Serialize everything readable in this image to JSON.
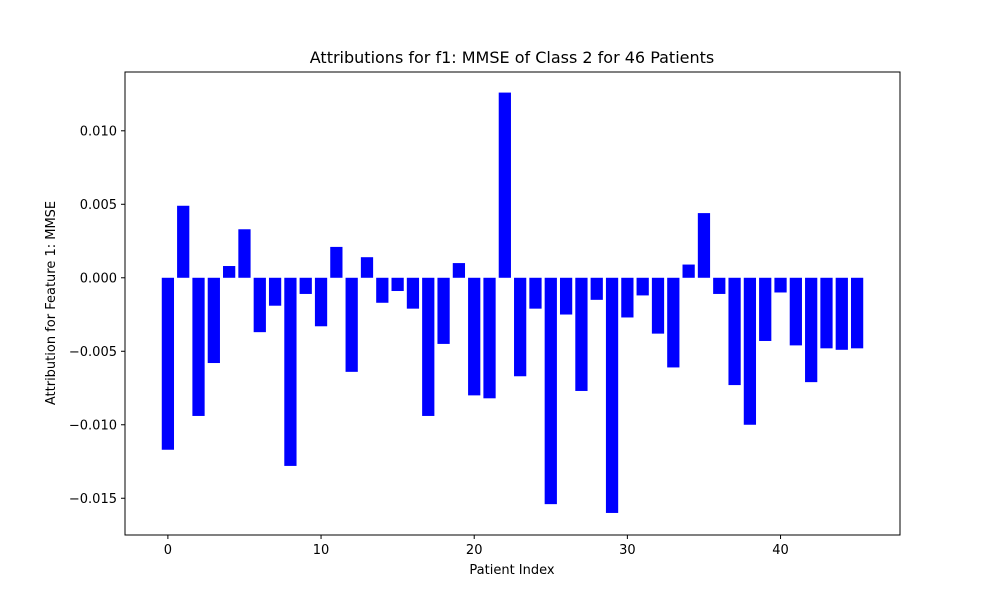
{
  "chart_data": {
    "type": "bar",
    "title": "Attributions for f1: MMSE of Class 2 for 46 Patients",
    "xlabel": "Patient Index",
    "ylabel": "Attribution for Feature 1: MMSE",
    "x": [
      0,
      1,
      2,
      3,
      4,
      5,
      6,
      7,
      8,
      9,
      10,
      11,
      12,
      13,
      14,
      15,
      16,
      17,
      18,
      19,
      20,
      21,
      22,
      23,
      24,
      25,
      26,
      27,
      28,
      29,
      30,
      31,
      32,
      33,
      34,
      35,
      36,
      37,
      38,
      39,
      40,
      41,
      42,
      43,
      44,
      45
    ],
    "values": [
      -0.0117,
      0.0049,
      -0.0094,
      -0.0058,
      0.0008,
      0.0033,
      -0.0037,
      -0.0019,
      -0.0128,
      -0.0011,
      -0.0033,
      0.0021,
      -0.0064,
      0.0014,
      -0.0017,
      -0.0009,
      -0.0021,
      -0.0094,
      -0.0045,
      0.001,
      -0.008,
      -0.0082,
      0.0126,
      -0.0067,
      -0.0021,
      -0.0154,
      -0.0025,
      -0.0077,
      -0.0015,
      -0.016,
      -0.0027,
      -0.0012,
      -0.0038,
      -0.0061,
      0.0009,
      0.0044,
      -0.0011,
      -0.0073,
      -0.01,
      -0.0043,
      -0.001,
      -0.0046,
      -0.0071,
      -0.0048,
      -0.0049,
      -0.0048
    ],
    "xlim": [
      -2.8,
      47.8
    ],
    "ylim": [
      -0.0175,
      0.014
    ],
    "xticks": [
      0,
      10,
      20,
      30,
      40
    ],
    "xtick_labels": [
      "0",
      "10",
      "20",
      "30",
      "40"
    ],
    "yticks": [
      -0.015,
      -0.01,
      -0.005,
      0.0,
      0.005,
      0.01
    ],
    "ytick_labels": [
      "−0.015",
      "−0.010",
      "−0.005",
      "0.000",
      "0.005",
      "0.010"
    ],
    "bar_color": "#0000ff",
    "grid": false,
    "legend": "none"
  }
}
